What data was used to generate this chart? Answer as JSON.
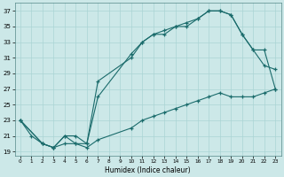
{
  "xlabel": "Humidex (Indice chaleur)",
  "bg_color": "#cce8e8",
  "grid_color": "#aad4d4",
  "line_color": "#1a6b6b",
  "xlim": [
    -0.5,
    23.5
  ],
  "ylim": [
    18.5,
    38
  ],
  "xticks": [
    0,
    1,
    2,
    3,
    4,
    5,
    6,
    7,
    8,
    9,
    10,
    11,
    12,
    13,
    14,
    15,
    16,
    17,
    18,
    19,
    20,
    21,
    22,
    23
  ],
  "yticks": [
    19,
    21,
    23,
    25,
    27,
    29,
    31,
    33,
    35,
    37
  ],
  "line1_x": [
    0,
    1,
    2,
    3,
    4,
    5,
    6,
    7,
    10,
    11,
    12,
    13,
    14,
    15,
    16,
    17,
    18,
    19,
    20,
    21,
    22,
    23
  ],
  "line1_y": [
    23,
    21,
    20,
    19.5,
    20,
    20,
    20,
    28,
    31,
    33,
    34,
    34,
    35,
    35.5,
    36,
    37,
    37,
    36.5,
    34,
    32,
    30,
    29.5
  ],
  "line2_x": [
    0,
    2,
    3,
    4,
    5,
    6,
    7,
    10,
    11,
    12,
    13,
    14,
    15,
    16,
    17,
    18,
    19,
    20,
    21,
    22,
    23
  ],
  "line2_y": [
    23,
    20,
    19.5,
    21,
    21,
    20,
    26,
    31.5,
    33,
    34,
    34.5,
    35,
    35,
    36,
    37,
    37,
    36.5,
    34,
    32,
    32,
    27
  ],
  "line3_x": [
    0,
    2,
    3,
    4,
    5,
    6,
    7,
    10,
    11,
    12,
    13,
    14,
    15,
    16,
    17,
    18,
    19,
    20,
    21,
    22,
    23
  ],
  "line3_y": [
    23,
    20,
    19.5,
    21,
    20,
    19.5,
    20.5,
    22,
    23,
    23.5,
    24,
    24.5,
    25,
    25.5,
    26,
    26.5,
    26,
    26,
    26,
    26.5,
    27
  ]
}
